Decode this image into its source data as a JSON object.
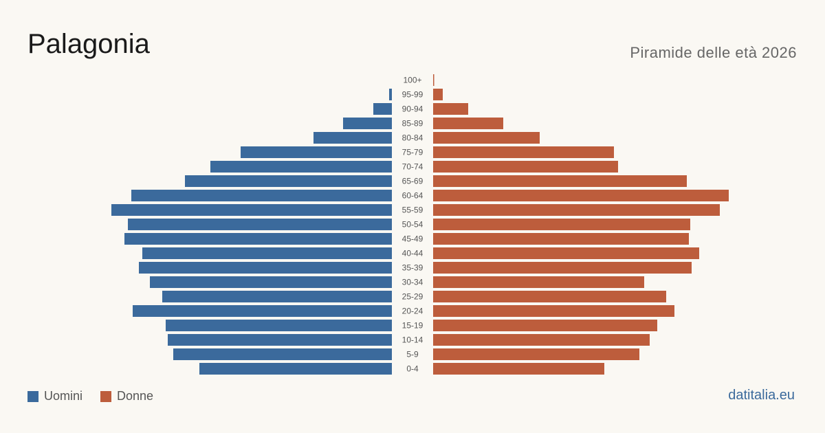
{
  "title": "Palagonia",
  "subtitle": "Piramide delle età 2026",
  "source": "datitalia.eu",
  "colors": {
    "men": "#3b6a9c",
    "women": "#bd5d3c"
  },
  "chart_data": {
    "type": "bar",
    "orientation": "horizontal-pyramid",
    "categories": [
      "100+",
      "95-99",
      "90-94",
      "85-89",
      "80-84",
      "75-79",
      "70-74",
      "65-69",
      "60-64",
      "55-59",
      "50-54",
      "45-49",
      "40-44",
      "35-39",
      "30-34",
      "25-29",
      "20-24",
      "15-19",
      "10-14",
      "5-9",
      "0-4"
    ],
    "series": [
      {
        "name": "Uomini",
        "values": [
          0,
          4,
          27,
          71,
          114,
          220,
          264,
          301,
          379,
          408,
          384,
          389,
          363,
          368,
          352,
          334,
          377,
          329,
          326,
          318,
          280
        ]
      },
      {
        "name": "Donne",
        "values": [
          1,
          14,
          51,
          102,
          155,
          263,
          269,
          369,
          430,
          417,
          374,
          372,
          387,
          376,
          307,
          339,
          351,
          326,
          315,
          300,
          249
        ]
      }
    ],
    "legend": {
      "position": "bottom-left",
      "entries": [
        "Uomini",
        "Donne"
      ]
    }
  }
}
